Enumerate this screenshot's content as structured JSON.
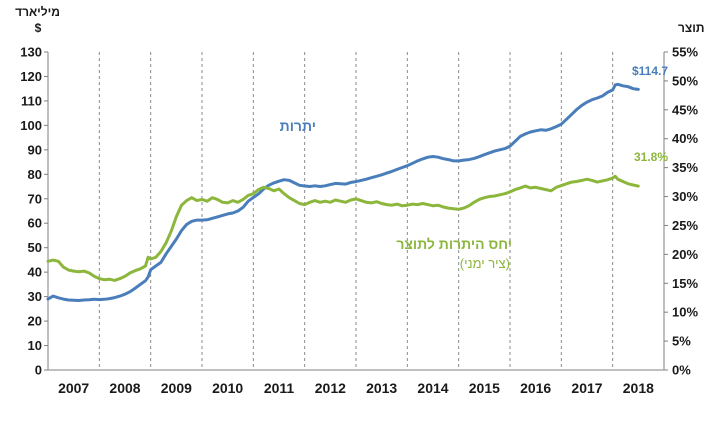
{
  "chart_data": {
    "type": "line",
    "left_axis": {
      "unit_line1": "מיליארד",
      "unit_line2": "$",
      "min": 0,
      "max": 130,
      "ticks": [
        "0",
        "10",
        "20",
        "30",
        "40",
        "50",
        "60",
        "70",
        "80",
        "90",
        "100",
        "110",
        "120",
        "130"
      ]
    },
    "right_axis": {
      "unit": "תוצר",
      "min": 0,
      "max": 55,
      "ticks": [
        "0%",
        "5%",
        "10%",
        "15%",
        "20%",
        "25%",
        "30%",
        "35%",
        "40%",
        "45%",
        "50%",
        "55%"
      ]
    },
    "x_range": [
      2007.0,
      2019.0
    ],
    "x_ticks": [
      "2007",
      "2008",
      "2009",
      "2010",
      "2011",
      "2012",
      "2013",
      "2014",
      "2015",
      "2016",
      "2017",
      "2018"
    ],
    "year_gridlines": true,
    "colors": {
      "reserves": "#4a7ebb",
      "ratio": "#8cb63c",
      "axis": "#808080"
    },
    "series": [
      {
        "name": "יתרות",
        "axis": "left",
        "color": "#4a7ebb",
        "end_label": "$114.7",
        "points": [
          [
            2007.0,
            29.0
          ],
          [
            2007.1,
            30.2
          ],
          [
            2007.2,
            29.5
          ],
          [
            2007.3,
            29.0
          ],
          [
            2007.4,
            28.6
          ],
          [
            2007.5,
            28.5
          ],
          [
            2007.6,
            28.4
          ],
          [
            2007.7,
            28.6
          ],
          [
            2007.8,
            28.7
          ],
          [
            2007.9,
            28.9
          ],
          [
            2008.0,
            28.8
          ],
          [
            2008.1,
            28.9
          ],
          [
            2008.2,
            29.2
          ],
          [
            2008.3,
            29.6
          ],
          [
            2008.4,
            30.2
          ],
          [
            2008.5,
            31.0
          ],
          [
            2008.6,
            32.0
          ],
          [
            2008.7,
            33.5
          ],
          [
            2008.8,
            35.0
          ],
          [
            2008.9,
            36.5
          ],
          [
            2008.95,
            38.0
          ],
          [
            2009.0,
            41.0
          ],
          [
            2009.1,
            42.5
          ],
          [
            2009.2,
            44.0
          ],
          [
            2009.3,
            47.5
          ],
          [
            2009.4,
            50.5
          ],
          [
            2009.5,
            53.5
          ],
          [
            2009.6,
            57.0
          ],
          [
            2009.7,
            59.5
          ],
          [
            2009.8,
            60.8
          ],
          [
            2009.9,
            61.3
          ],
          [
            2010.0,
            61.3
          ],
          [
            2010.1,
            61.4
          ],
          [
            2010.2,
            62.0
          ],
          [
            2010.3,
            62.6
          ],
          [
            2010.4,
            63.2
          ],
          [
            2010.5,
            63.8
          ],
          [
            2010.6,
            64.2
          ],
          [
            2010.7,
            65.0
          ],
          [
            2010.8,
            66.5
          ],
          [
            2010.9,
            69.0
          ],
          [
            2011.0,
            70.5
          ],
          [
            2011.1,
            72.0
          ],
          [
            2011.2,
            74.0
          ],
          [
            2011.3,
            75.5
          ],
          [
            2011.4,
            76.5
          ],
          [
            2011.5,
            77.2
          ],
          [
            2011.6,
            77.8
          ],
          [
            2011.7,
            77.5
          ],
          [
            2011.8,
            76.5
          ],
          [
            2011.9,
            75.5
          ],
          [
            2012.0,
            75.2
          ],
          [
            2012.1,
            75.0
          ],
          [
            2012.2,
            75.3
          ],
          [
            2012.3,
            75.0
          ],
          [
            2012.4,
            75.3
          ],
          [
            2012.5,
            75.8
          ],
          [
            2012.6,
            76.3
          ],
          [
            2012.7,
            76.1
          ],
          [
            2012.8,
            76.0
          ],
          [
            2012.9,
            76.7
          ],
          [
            2013.0,
            77.0
          ],
          [
            2013.1,
            77.5
          ],
          [
            2013.2,
            78.0
          ],
          [
            2013.3,
            78.6
          ],
          [
            2013.4,
            79.2
          ],
          [
            2013.5,
            79.8
          ],
          [
            2013.6,
            80.5
          ],
          [
            2013.7,
            81.2
          ],
          [
            2013.8,
            82.0
          ],
          [
            2013.9,
            82.8
          ],
          [
            2014.0,
            83.5
          ],
          [
            2014.1,
            84.5
          ],
          [
            2014.2,
            85.5
          ],
          [
            2014.3,
            86.3
          ],
          [
            2014.4,
            87.0
          ],
          [
            2014.5,
            87.3
          ],
          [
            2014.6,
            87.0
          ],
          [
            2014.7,
            86.4
          ],
          [
            2014.8,
            86.0
          ],
          [
            2014.9,
            85.5
          ],
          [
            2015.0,
            85.5
          ],
          [
            2015.1,
            85.8
          ],
          [
            2015.2,
            86.0
          ],
          [
            2015.3,
            86.5
          ],
          [
            2015.4,
            87.2
          ],
          [
            2015.5,
            88.0
          ],
          [
            2015.6,
            88.8
          ],
          [
            2015.7,
            89.5
          ],
          [
            2015.8,
            90.0
          ],
          [
            2015.9,
            90.5
          ],
          [
            2016.0,
            91.5
          ],
          [
            2016.1,
            93.5
          ],
          [
            2016.2,
            95.5
          ],
          [
            2016.3,
            96.5
          ],
          [
            2016.4,
            97.3
          ],
          [
            2016.5,
            97.8
          ],
          [
            2016.6,
            98.2
          ],
          [
            2016.7,
            98.0
          ],
          [
            2016.8,
            98.6
          ],
          [
            2016.9,
            99.5
          ],
          [
            2017.0,
            100.5
          ],
          [
            2017.1,
            102.5
          ],
          [
            2017.2,
            104.5
          ],
          [
            2017.3,
            106.5
          ],
          [
            2017.4,
            108.2
          ],
          [
            2017.5,
            109.5
          ],
          [
            2017.6,
            110.5
          ],
          [
            2017.7,
            111.2
          ],
          [
            2017.8,
            112.0
          ],
          [
            2017.9,
            113.5
          ],
          [
            2018.0,
            114.5
          ],
          [
            2018.05,
            116.5
          ],
          [
            2018.1,
            116.8
          ],
          [
            2018.2,
            116.2
          ],
          [
            2018.3,
            115.8
          ],
          [
            2018.4,
            115.0
          ],
          [
            2018.5,
            114.7
          ]
        ]
      },
      {
        "name": "יחס היתרות לתוצר",
        "sub_label": "(ציר ימני)",
        "axis": "right",
        "color": "#8cb63c",
        "end_label": "31.8%",
        "points": [
          [
            2007.0,
            18.8
          ],
          [
            2007.1,
            19.0
          ],
          [
            2007.2,
            18.8
          ],
          [
            2007.3,
            17.8
          ],
          [
            2007.4,
            17.3
          ],
          [
            2007.5,
            17.1
          ],
          [
            2007.6,
            17.0
          ],
          [
            2007.7,
            17.1
          ],
          [
            2007.8,
            16.8
          ],
          [
            2007.9,
            16.2
          ],
          [
            2008.0,
            15.8
          ],
          [
            2008.1,
            15.6
          ],
          [
            2008.2,
            15.7
          ],
          [
            2008.3,
            15.5
          ],
          [
            2008.4,
            15.8
          ],
          [
            2008.5,
            16.2
          ],
          [
            2008.6,
            16.8
          ],
          [
            2008.7,
            17.2
          ],
          [
            2008.8,
            17.5
          ],
          [
            2008.9,
            18.0
          ],
          [
            2008.95,
            19.5
          ],
          [
            2009.0,
            19.2
          ],
          [
            2009.1,
            19.5
          ],
          [
            2009.2,
            20.5
          ],
          [
            2009.3,
            22.0
          ],
          [
            2009.4,
            24.0
          ],
          [
            2009.5,
            26.5
          ],
          [
            2009.6,
            28.5
          ],
          [
            2009.7,
            29.3
          ],
          [
            2009.8,
            29.8
          ],
          [
            2009.9,
            29.3
          ],
          [
            2010.0,
            29.5
          ],
          [
            2010.1,
            29.2
          ],
          [
            2010.2,
            29.8
          ],
          [
            2010.3,
            29.5
          ],
          [
            2010.4,
            29.0
          ],
          [
            2010.5,
            28.9
          ],
          [
            2010.6,
            29.3
          ],
          [
            2010.7,
            29.0
          ],
          [
            2010.8,
            29.5
          ],
          [
            2010.9,
            30.2
          ],
          [
            2011.0,
            30.5
          ],
          [
            2011.1,
            31.2
          ],
          [
            2011.2,
            31.6
          ],
          [
            2011.3,
            31.4
          ],
          [
            2011.4,
            31.0
          ],
          [
            2011.5,
            31.3
          ],
          [
            2011.6,
            30.5
          ],
          [
            2011.7,
            29.8
          ],
          [
            2011.8,
            29.3
          ],
          [
            2011.9,
            28.8
          ],
          [
            2012.0,
            28.6
          ],
          [
            2012.1,
            29.0
          ],
          [
            2012.2,
            29.3
          ],
          [
            2012.3,
            29.0
          ],
          [
            2012.4,
            29.2
          ],
          [
            2012.5,
            29.0
          ],
          [
            2012.6,
            29.4
          ],
          [
            2012.7,
            29.2
          ],
          [
            2012.8,
            29.0
          ],
          [
            2012.9,
            29.4
          ],
          [
            2013.0,
            29.6
          ],
          [
            2013.1,
            29.3
          ],
          [
            2013.2,
            29.0
          ],
          [
            2013.3,
            28.9
          ],
          [
            2013.4,
            29.1
          ],
          [
            2013.5,
            28.8
          ],
          [
            2013.6,
            28.6
          ],
          [
            2013.7,
            28.5
          ],
          [
            2013.8,
            28.7
          ],
          [
            2013.9,
            28.4
          ],
          [
            2014.0,
            28.5
          ],
          [
            2014.1,
            28.7
          ],
          [
            2014.2,
            28.6
          ],
          [
            2014.3,
            28.8
          ],
          [
            2014.4,
            28.6
          ],
          [
            2014.5,
            28.4
          ],
          [
            2014.6,
            28.5
          ],
          [
            2014.7,
            28.2
          ],
          [
            2014.8,
            28.0
          ],
          [
            2014.9,
            27.9
          ],
          [
            2015.0,
            27.8
          ],
          [
            2015.1,
            28.0
          ],
          [
            2015.2,
            28.4
          ],
          [
            2015.3,
            29.0
          ],
          [
            2015.4,
            29.5
          ],
          [
            2015.5,
            29.8
          ],
          [
            2015.6,
            30.0
          ],
          [
            2015.7,
            30.1
          ],
          [
            2015.8,
            30.3
          ],
          [
            2015.9,
            30.5
          ],
          [
            2016.0,
            30.8
          ],
          [
            2016.1,
            31.2
          ],
          [
            2016.2,
            31.5
          ],
          [
            2016.3,
            31.8
          ],
          [
            2016.4,
            31.5
          ],
          [
            2016.5,
            31.6
          ],
          [
            2016.6,
            31.4
          ],
          [
            2016.7,
            31.2
          ],
          [
            2016.8,
            31.0
          ],
          [
            2016.9,
            31.6
          ],
          [
            2017.0,
            31.9
          ],
          [
            2017.1,
            32.2
          ],
          [
            2017.2,
            32.5
          ],
          [
            2017.3,
            32.6
          ],
          [
            2017.4,
            32.8
          ],
          [
            2017.5,
            33.0
          ],
          [
            2017.6,
            32.8
          ],
          [
            2017.7,
            32.5
          ],
          [
            2017.8,
            32.7
          ],
          [
            2017.9,
            32.9
          ],
          [
            2018.0,
            33.2
          ],
          [
            2018.05,
            33.5
          ],
          [
            2018.1,
            33.0
          ],
          [
            2018.2,
            32.6
          ],
          [
            2018.3,
            32.2
          ],
          [
            2018.4,
            32.0
          ],
          [
            2018.5,
            31.8
          ]
        ]
      }
    ]
  }
}
